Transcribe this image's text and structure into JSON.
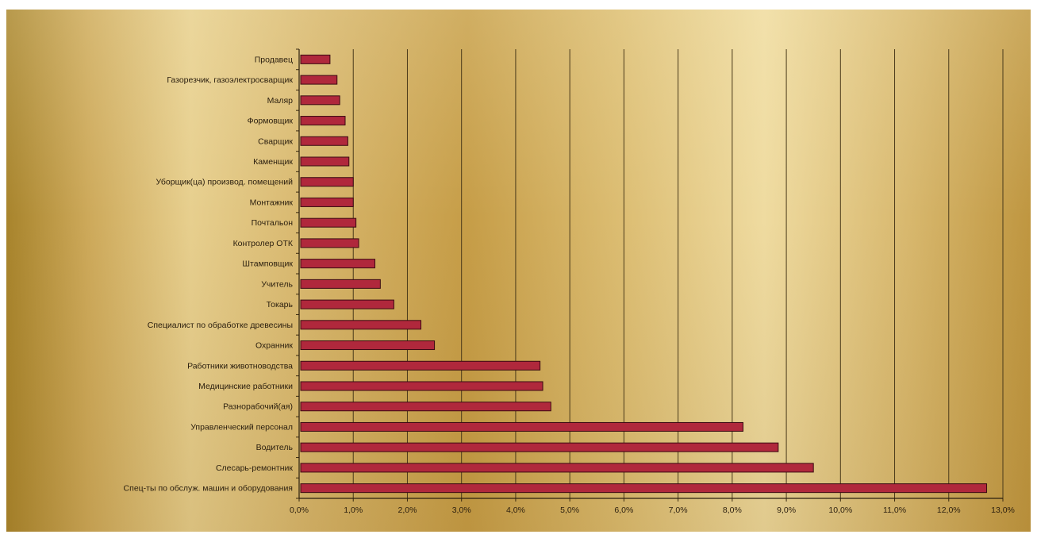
{
  "chart_data": {
    "type": "bar",
    "orientation": "horizontal",
    "categories": [
      "Спец-ты по обслуж. машин и оборудования",
      "Слесарь-ремонтник",
      "Водитель",
      "Управленческий персонал",
      "Разнорабочий(ая)",
      "Медицинские работники",
      "Работники животноводства",
      "Охранник",
      "Специалист по обработке древесины",
      "Токарь",
      "Учитель",
      "Штамповщик",
      "Контролер ОТК",
      "Почтальон",
      "Монтажник",
      "Уборщик(ца) производ. помещений",
      "Каменщик",
      "Сварщик",
      "Формовщик",
      "Маляр",
      "Газорезчик, газоэлектросварщик",
      "Продавец"
    ],
    "values": [
      12.7,
      9.5,
      8.85,
      8.2,
      4.65,
      4.5,
      4.45,
      2.5,
      2.25,
      1.75,
      1.5,
      1.4,
      1.1,
      1.05,
      1.0,
      1.0,
      0.92,
      0.9,
      0.85,
      0.75,
      0.7,
      0.57
    ],
    "xlim": [
      0,
      13
    ],
    "x_ticks": [
      "0,0%",
      "1,0%",
      "2,0%",
      "3,0%",
      "4,0%",
      "5,0%",
      "6,0%",
      "7,0%",
      "8,0%",
      "9,0%",
      "10,0%",
      "11,0%",
      "12,0%",
      "13,0%"
    ],
    "grid": "vertical",
    "bar_color": "#b0283c",
    "bar_edge_color": "#3a0a12",
    "legend": "none"
  }
}
